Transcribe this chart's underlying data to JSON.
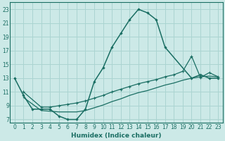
{
  "xlabel": "Humidex (Indice chaleur)",
  "bg_color": "#cce9e7",
  "line_color": "#1a6e63",
  "grid_color": "#aad4d1",
  "xlim": [
    -0.5,
    23.5
  ],
  "ylim": [
    6.5,
    24
  ],
  "yticks": [
    7,
    9,
    11,
    13,
    15,
    17,
    19,
    21,
    23
  ],
  "xticks": [
    0,
    1,
    2,
    3,
    4,
    5,
    6,
    7,
    8,
    9,
    10,
    11,
    12,
    13,
    14,
    15,
    16,
    17,
    18,
    19,
    20,
    21,
    22,
    23
  ],
  "curve1_x": [
    0,
    1,
    2,
    3,
    4,
    5,
    6,
    7,
    8,
    9,
    10,
    11,
    12,
    13,
    14,
    15,
    16,
    17,
    20,
    21,
    22,
    23
  ],
  "curve1_y": [
    13,
    10.5,
    8.5,
    8.5,
    8.5,
    7.5,
    7.0,
    7.0,
    8.5,
    12.5,
    14.5,
    17.5,
    19.5,
    21.5,
    23.0,
    22.5,
    21.5,
    17.5,
    13.0,
    13.5,
    13.0,
    13.0
  ],
  "curve2_x": [
    1,
    3,
    4,
    5,
    6,
    7,
    8,
    9,
    10,
    11,
    12,
    13,
    14,
    15,
    16,
    17,
    18,
    19,
    20,
    21,
    22,
    23
  ],
  "curve2_y": [
    11.0,
    8.8,
    8.8,
    9.0,
    9.2,
    9.4,
    9.7,
    10.1,
    10.5,
    11.0,
    11.4,
    11.8,
    12.2,
    12.5,
    12.8,
    13.2,
    13.5,
    14.0,
    16.2,
    13.1,
    13.8,
    13.2
  ],
  "curve3_x": [
    1,
    3,
    4,
    5,
    6,
    7,
    8,
    9,
    10,
    11,
    12,
    13,
    14,
    15,
    16,
    17,
    18,
    19,
    20,
    21,
    22,
    23
  ],
  "curve3_y": [
    10.2,
    8.3,
    8.2,
    8.1,
    8.1,
    8.1,
    8.3,
    8.7,
    9.1,
    9.6,
    10.0,
    10.5,
    10.9,
    11.2,
    11.6,
    12.0,
    12.3,
    12.7,
    13.0,
    13.2,
    13.3,
    13.2
  ]
}
